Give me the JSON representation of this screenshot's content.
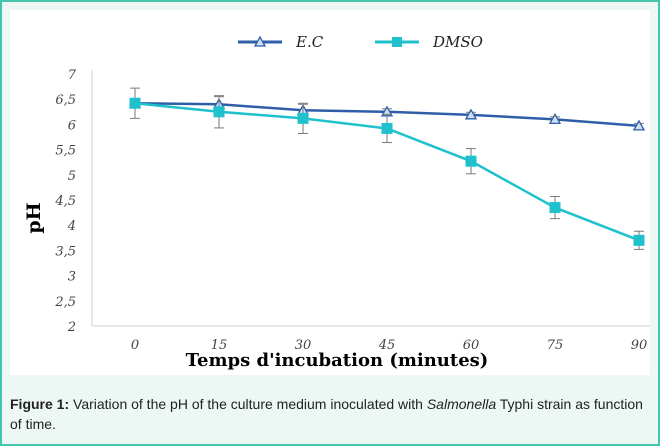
{
  "chart_data": {
    "type": "line",
    "x": [
      0,
      15,
      30,
      45,
      60,
      75,
      90
    ],
    "x_tick_labels": [
      "0",
      "15",
      "30",
      "45",
      "60",
      "75",
      "90"
    ],
    "y_tick_labels": [
      "2",
      "2,5",
      "3",
      "3,5",
      "4",
      "4,5",
      "5",
      "5,5",
      "6",
      "6,5",
      "7"
    ],
    "ylim": [
      2,
      7
    ],
    "xlabel": "Temps d'incubation (minutes)",
    "ylabel": "pH",
    "grid": false,
    "legend_position": "top-center",
    "series": [
      {
        "name": "E.C",
        "marker": "triangle",
        "color": "#2f5ea8",
        "values": [
          6.42,
          6.4,
          6.28,
          6.25,
          6.19,
          6.1,
          5.97
        ],
        "errors": [
          0.08,
          0.15,
          0.12,
          0.06,
          0.05,
          0.05,
          0.05
        ]
      },
      {
        "name": "DMSO",
        "marker": "square",
        "color": "#1ec1cc",
        "values": [
          6.42,
          6.25,
          6.12,
          5.92,
          5.27,
          4.35,
          3.7
        ],
        "errors": [
          0.3,
          0.32,
          0.3,
          0.28,
          0.25,
          0.22,
          0.18
        ]
      }
    ]
  },
  "caption": {
    "label": "Figure 1:",
    "text_before": " Variation of the pH of the culture medium inoculated with ",
    "italic": "Salmonella",
    "text_after": " Typhi strain as function of time."
  }
}
